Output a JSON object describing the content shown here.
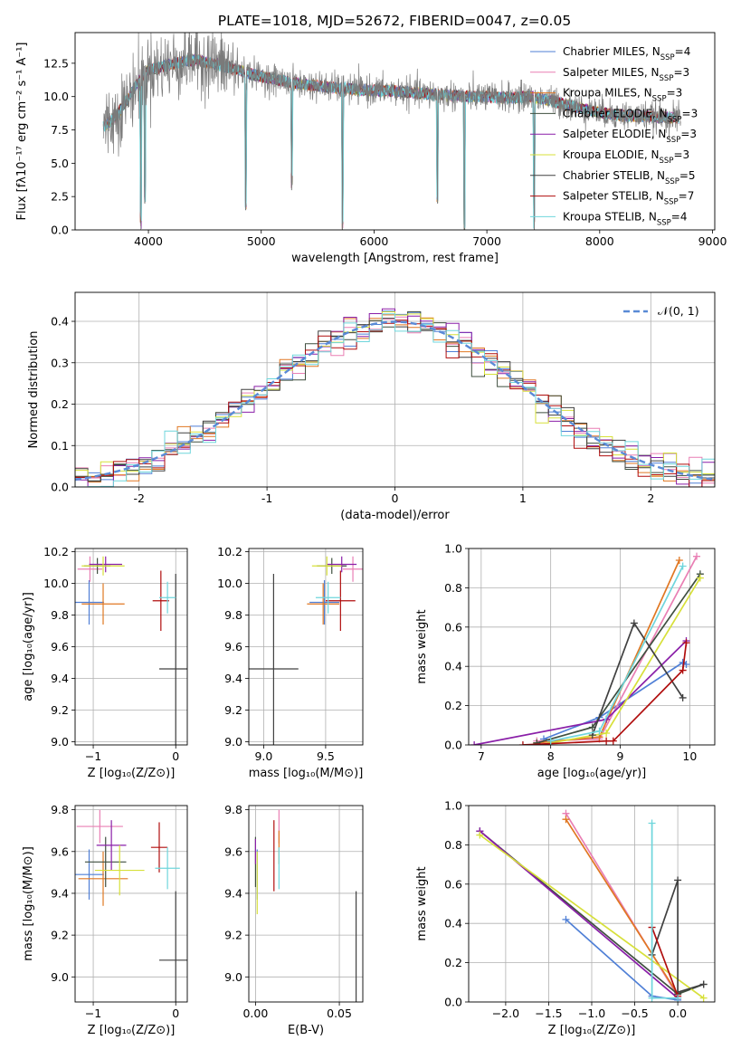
{
  "figure_title": "PLATE=1018, MJD=52672, FIBERID=0047, z=0.05",
  "colors": [
    "#4f7fd6",
    "#e97fb4",
    "#e07722",
    "#3f4f3f",
    "#8a1fa8",
    "#d7e03a",
    "#404040",
    "#b00d0d",
    "#6fd6dc"
  ],
  "chart_data": [
    {
      "id": "spectrum",
      "type": "line",
      "title": "PLATE=1018, MJD=52672, FIBERID=0047, z=0.05",
      "xlabel": "wavelength [Angstrom, rest frame]",
      "ylabel": "Flux [fλ10⁻¹⁷ erg cm⁻² s⁻¹ A⁻¹]",
      "xlim": [
        3350,
        9020
      ],
      "ylim": [
        0,
        14.8
      ],
      "xticks": [
        4000,
        5000,
        6000,
        7000,
        8000,
        9000
      ],
      "yticks": [
        0.0,
        2.5,
        5.0,
        7.5,
        10.0,
        12.5
      ],
      "ytick_labels": [
        "0.0",
        "2.5",
        "5.0",
        "7.5",
        "10.0",
        "12.5"
      ],
      "legend_position": "upper-right",
      "grid": false,
      "series": [
        {
          "name": "Chabrier MILES, N",
          "sub": "SSP",
          "suffix": "=4"
        },
        {
          "name": "Salpeter MILES, N",
          "sub": "SSP",
          "suffix": "=3"
        },
        {
          "name": "Kroupa MILES, N",
          "sub": "SSP",
          "suffix": "=3"
        },
        {
          "name": "Chabrier ELODIE, N",
          "sub": "SSP",
          "suffix": "=3"
        },
        {
          "name": "Salpeter ELODIE, N",
          "sub": "SSP",
          "suffix": "=3"
        },
        {
          "name": "Kroupa ELODIE, N",
          "sub": "SSP",
          "suffix": "=3"
        },
        {
          "name": "Chabrier STELIB, N",
          "sub": "SSP",
          "suffix": "=5"
        },
        {
          "name": "Salpeter STELIB, N",
          "sub": "SSP",
          "suffix": "=7"
        },
        {
          "name": "Kroupa STELIB, N",
          "sub": "SSP",
          "suffix": "=4"
        }
      ],
      "continuum": {
        "x": [
          3600,
          3700,
          3800,
          3900,
          4000,
          4100,
          4200,
          4300,
          4400,
          4500,
          4700,
          5000,
          5300,
          5600,
          5900,
          6200,
          6500,
          6800,
          7000,
          7200,
          7400,
          7600,
          7800,
          8000,
          8200,
          8400,
          8700
        ],
        "y": [
          7.8,
          8.4,
          9.6,
          11.0,
          12.0,
          12.2,
          12.4,
          12.6,
          12.8,
          12.6,
          12.2,
          11.5,
          11.0,
          10.7,
          10.5,
          10.4,
          10.2,
          10.0,
          10.0,
          9.9,
          10.0,
          9.6,
          9.2,
          8.8,
          8.6,
          8.5,
          8.4
        ]
      },
      "absorption": [
        [
          3933,
          0.0
        ],
        [
          3968,
          2.0
        ],
        [
          4861,
          1.5
        ],
        [
          5270,
          3.0
        ],
        [
          5720,
          0.0
        ],
        [
          6563,
          2.0
        ],
        [
          6800,
          0.0
        ],
        [
          7420,
          0.0
        ]
      ]
    },
    {
      "id": "residuals",
      "type": "step",
      "xlabel": "(data-model)/error",
      "ylabel": "Normed distribution",
      "xlim": [
        -2.5,
        2.5
      ],
      "ylim": [
        0,
        0.47
      ],
      "xticks": [
        -2,
        -1,
        0,
        1,
        2
      ],
      "yticks": [
        0.0,
        0.1,
        0.2,
        0.3,
        0.4
      ],
      "ytick_labels": [
        "0.0",
        "0.1",
        "0.2",
        "0.3",
        "0.4"
      ],
      "grid": true,
      "bin_width": 0.1,
      "legend": {
        "label": "𝒩(0, 1)",
        "position": "upper-right"
      },
      "reference_curve": "gaussian N(0,1)"
    },
    {
      "id": "age-vs-z",
      "type": "errorbar",
      "xlabel": "Z [log₁₀(Z/Z⊙)]",
      "ylabel": "age  [log₁₀(age/yr)]",
      "xlim": [
        -1.22,
        0.14
      ],
      "ylim": [
        8.98,
        10.22
      ],
      "xticks": [
        -1,
        0
      ],
      "xtick_labels": [
        "−1",
        "0"
      ],
      "yticks": [
        9.0,
        9.2,
        9.4,
        9.6,
        9.8,
        10.0,
        10.2
      ],
      "ytick_labels": [
        "9.0",
        "9.2",
        "9.4",
        "9.6",
        "9.8",
        "10.0",
        "10.2"
      ],
      "grid": true,
      "points": [
        {
          "c": 0,
          "x": -1.05,
          "y": 9.88,
          "xerr": 0.18,
          "yerr": 0.14
        },
        {
          "c": 1,
          "x": -1.04,
          "y": 10.09,
          "xerr": 0.15,
          "yerr": 0.08
        },
        {
          "c": 2,
          "x": -0.88,
          "y": 9.87,
          "xerr": 0.26,
          "yerr": 0.13
        },
        {
          "c": 3,
          "x": -0.95,
          "y": 10.11,
          "xerr": 0.16,
          "yerr": 0.05
        },
        {
          "c": 4,
          "x": -0.85,
          "y": 10.12,
          "xerr": 0.2,
          "yerr": 0.05
        },
        {
          "c": 5,
          "x": -0.88,
          "y": 10.11,
          "xerr": 0.26,
          "yerr": 0.06
        },
        {
          "c": 6,
          "x": 0.0,
          "y": 9.46,
          "xerr": 0.2,
          "yerr": 0.6
        },
        {
          "c": 7,
          "x": -0.18,
          "y": 9.89,
          "xerr": 0.1,
          "yerr": 0.19
        },
        {
          "c": 8,
          "x": -0.1,
          "y": 9.91,
          "xerr": 0.1,
          "yerr": 0.1
        }
      ]
    },
    {
      "id": "age-vs-mass",
      "type": "errorbar",
      "xlabel": "mass [log₁₀(M/M⊙)]",
      "ylabel": "",
      "xlim": [
        8.88,
        9.8
      ],
      "ylim": [
        8.98,
        10.22
      ],
      "xticks": [
        9.0,
        9.5
      ],
      "xtick_labels": [
        "9.0",
        "9.5"
      ],
      "yticks": [
        9.0,
        9.2,
        9.4,
        9.6,
        9.8,
        10.0,
        10.2
      ],
      "ytick_labels": [
        "9.0",
        "9.2",
        "9.4",
        "9.6",
        "9.8",
        "10.0",
        "10.2"
      ],
      "grid": true,
      "points": [
        {
          "c": 0,
          "x": 9.49,
          "y": 9.88,
          "xerr": 0.12,
          "yerr": 0.14
        },
        {
          "c": 1,
          "x": 9.72,
          "y": 10.09,
          "xerr": 0.08,
          "yerr": 0.08
        },
        {
          "c": 2,
          "x": 9.48,
          "y": 9.87,
          "xerr": 0.13,
          "yerr": 0.13
        },
        {
          "c": 3,
          "x": 9.55,
          "y": 10.11,
          "xerr": 0.12,
          "yerr": 0.05
        },
        {
          "c": 4,
          "x": 9.63,
          "y": 10.12,
          "xerr": 0.12,
          "yerr": 0.05
        },
        {
          "c": 5,
          "x": 9.51,
          "y": 10.11,
          "xerr": 0.12,
          "yerr": 0.06
        },
        {
          "c": 6,
          "x": 9.08,
          "y": 9.46,
          "xerr": 0.2,
          "yerr": 0.6
        },
        {
          "c": 7,
          "x": 9.62,
          "y": 9.89,
          "xerr": 0.12,
          "yerr": 0.19
        },
        {
          "c": 8,
          "x": 9.52,
          "y": 9.91,
          "xerr": 0.1,
          "yerr": 0.1
        }
      ]
    },
    {
      "id": "weight-vs-age",
      "type": "line",
      "xlabel": "age  [log₁₀(age/yr)]",
      "ylabel": "mass weight",
      "xlim": [
        6.82,
        10.36
      ],
      "ylim": [
        0,
        1.0
      ],
      "xticks": [
        7,
        8,
        9,
        10
      ],
      "xtick_labels": [
        "7",
        "8",
        "9",
        "10"
      ],
      "yticks": [
        0.0,
        0.2,
        0.4,
        0.6,
        0.8,
        1.0
      ],
      "ytick_labels": [
        "0.0",
        "0.2",
        "0.4",
        "0.6",
        "0.8",
        "1.0"
      ],
      "grid": true,
      "series": [
        {
          "c": 0,
          "x": [
            7.9,
            8.7,
            9.9,
            9.95
          ],
          "y": [
            0.03,
            0.14,
            0.42,
            0.41
          ]
        },
        {
          "c": 1,
          "x": [
            7.8,
            8.7,
            10.1
          ],
          "y": [
            0.02,
            0.03,
            0.96
          ]
        },
        {
          "c": 2,
          "x": [
            7.8,
            8.7,
            9.85
          ],
          "y": [
            0.01,
            0.04,
            0.94
          ]
        },
        {
          "c": 3,
          "x": [
            7.8,
            8.6,
            10.15
          ],
          "y": [
            0.01,
            0.09,
            0.87
          ]
        },
        {
          "c": 4,
          "x": [
            6.9,
            8.8,
            9.95
          ],
          "y": [
            0.0,
            0.13,
            0.53
          ]
        },
        {
          "c": 5,
          "x": [
            8.0,
            8.8,
            10.15
          ],
          "y": [
            0.01,
            0.06,
            0.85
          ]
        },
        {
          "c": 6,
          "x": [
            8.6,
            9.2,
            9.9
          ],
          "y": [
            0.05,
            0.62,
            0.24
          ]
        },
        {
          "c": 7,
          "x": [
            7.6,
            8.8,
            8.9,
            9.9,
            9.95
          ],
          "y": [
            0.0,
            0.02,
            0.02,
            0.38,
            0.52
          ]
        },
        {
          "c": 8,
          "x": [
            8.0,
            8.7,
            9.9
          ],
          "y": [
            0.02,
            0.07,
            0.91
          ]
        }
      ]
    },
    {
      "id": "mass-vs-z",
      "type": "errorbar",
      "xlabel": "Z [log₁₀(Z/Z⊙)]",
      "ylabel": "mass [log₁₀(M/M⊙)]",
      "xlim": [
        -1.22,
        0.14
      ],
      "ylim": [
        8.88,
        9.82
      ],
      "xticks": [
        -1,
        0
      ],
      "xtick_labels": [
        "−1",
        "0"
      ],
      "yticks": [
        9.0,
        9.2,
        9.4,
        9.6,
        9.8
      ],
      "ytick_labels": [
        "9.0",
        "9.2",
        "9.4",
        "9.6",
        "9.8"
      ],
      "grid": true,
      "points": [
        {
          "c": 0,
          "x": -1.05,
          "y": 9.49,
          "xerr": 0.18,
          "yerr": 0.12
        },
        {
          "c": 1,
          "x": -0.92,
          "y": 9.72,
          "xerr": 0.28,
          "yerr": 0.08
        },
        {
          "c": 2,
          "x": -0.88,
          "y": 9.47,
          "xerr": 0.3,
          "yerr": 0.13
        },
        {
          "c": 3,
          "x": -0.85,
          "y": 9.55,
          "xerr": 0.25,
          "yerr": 0.12
        },
        {
          "c": 4,
          "x": -0.78,
          "y": 9.63,
          "xerr": 0.18,
          "yerr": 0.12
        },
        {
          "c": 5,
          "x": -0.68,
          "y": 9.51,
          "xerr": 0.3,
          "yerr": 0.12
        },
        {
          "c": 6,
          "x": 0.0,
          "y": 9.08,
          "xerr": 0.2,
          "yerr": 0.33
        },
        {
          "c": 7,
          "x": -0.2,
          "y": 9.62,
          "xerr": 0.1,
          "yerr": 0.12
        },
        {
          "c": 8,
          "x": -0.1,
          "y": 9.52,
          "xerr": 0.15,
          "yerr": 0.1
        }
      ]
    },
    {
      "id": "mass-vs-ebv",
      "type": "errorbar",
      "xlabel": "E(B-V)",
      "ylabel": "",
      "xlim": [
        -0.004,
        0.064
      ],
      "ylim": [
        8.88,
        9.82
      ],
      "xticks": [
        0.0,
        0.05
      ],
      "xtick_labels": [
        "0.00",
        "0.05"
      ],
      "yticks": [
        9.0,
        9.2,
        9.4,
        9.6,
        9.8
      ],
      "ytick_labels": [
        "9.0",
        "9.2",
        "9.4",
        "9.6",
        "9.8"
      ],
      "grid": true,
      "points": [
        {
          "c": 0,
          "x": 0.001,
          "y": 9.49,
          "xerr": 0,
          "yerr": 0.12
        },
        {
          "c": 1,
          "x": 0.014,
          "y": 9.72,
          "xerr": 0,
          "yerr": 0.08
        },
        {
          "c": 2,
          "x": 0.014,
          "y": 9.62,
          "xerr": 0,
          "yerr": 0.08
        },
        {
          "c": 3,
          "x": 0.0,
          "y": 9.55,
          "xerr": 0,
          "yerr": 0.12
        },
        {
          "c": 4,
          "x": 0.0,
          "y": 9.6,
          "xerr": 0,
          "yerr": 0.06
        },
        {
          "c": 5,
          "x": 0.001,
          "y": 9.45,
          "xerr": 0,
          "yerr": 0.15
        },
        {
          "c": 6,
          "x": 0.06,
          "y": 9.09,
          "xerr": 0,
          "yerr": 0.32
        },
        {
          "c": 7,
          "x": 0.011,
          "y": 9.58,
          "xerr": 0,
          "yerr": 0.17
        },
        {
          "c": 8,
          "x": 0.014,
          "y": 9.52,
          "xerr": 0,
          "yerr": 0.1
        }
      ]
    },
    {
      "id": "weight-vs-z",
      "type": "line",
      "xlabel": "Z [log₁₀(Z/Z⊙)]",
      "ylabel": "mass weight",
      "xlim": [
        -2.43,
        0.43
      ],
      "ylim": [
        0,
        1.0
      ],
      "xticks": [
        -2.0,
        -1.5,
        -1.0,
        -0.5,
        0.0
      ],
      "xtick_labels": [
        "−2.0",
        "−1.5",
        "−1.0",
        "−0.5",
        "0.0"
      ],
      "yticks": [
        0.0,
        0.2,
        0.4,
        0.6,
        0.8,
        1.0
      ],
      "ytick_labels": [
        "0.0",
        "0.2",
        "0.4",
        "0.6",
        "0.8",
        "1.0"
      ],
      "grid": true,
      "series": [
        {
          "c": 0,
          "x": [
            -1.3,
            -0.3,
            0.0
          ],
          "y": [
            0.42,
            0.03,
            0.01
          ]
        },
        {
          "c": 1,
          "x": [
            -1.3,
            0.0
          ],
          "y": [
            0.96,
            0.03
          ]
        },
        {
          "c": 2,
          "x": [
            -1.3,
            0.0
          ],
          "y": [
            0.93,
            0.04
          ]
        },
        {
          "c": 3,
          "x": [
            -2.3,
            0.0,
            0.3
          ],
          "y": [
            0.87,
            0.04,
            0.09
          ]
        },
        {
          "c": 4,
          "x": [
            -2.3,
            0.0
          ],
          "y": [
            0.87,
            0.02
          ]
        },
        {
          "c": 5,
          "x": [
            -2.3,
            0.3
          ],
          "y": [
            0.85,
            0.02
          ]
        },
        {
          "c": 6,
          "x": [
            -0.3,
            0.0,
            0.0,
            0.3
          ],
          "y": [
            0.24,
            0.62,
            0.05,
            0.09
          ]
        },
        {
          "c": 7,
          "x": [
            -0.3,
            0.0
          ],
          "y": [
            0.38,
            0.03
          ]
        },
        {
          "c": 8,
          "x": [
            -0.3,
            -0.3,
            0.0
          ],
          "y": [
            0.91,
            0.02,
            0.02
          ]
        }
      ]
    }
  ]
}
